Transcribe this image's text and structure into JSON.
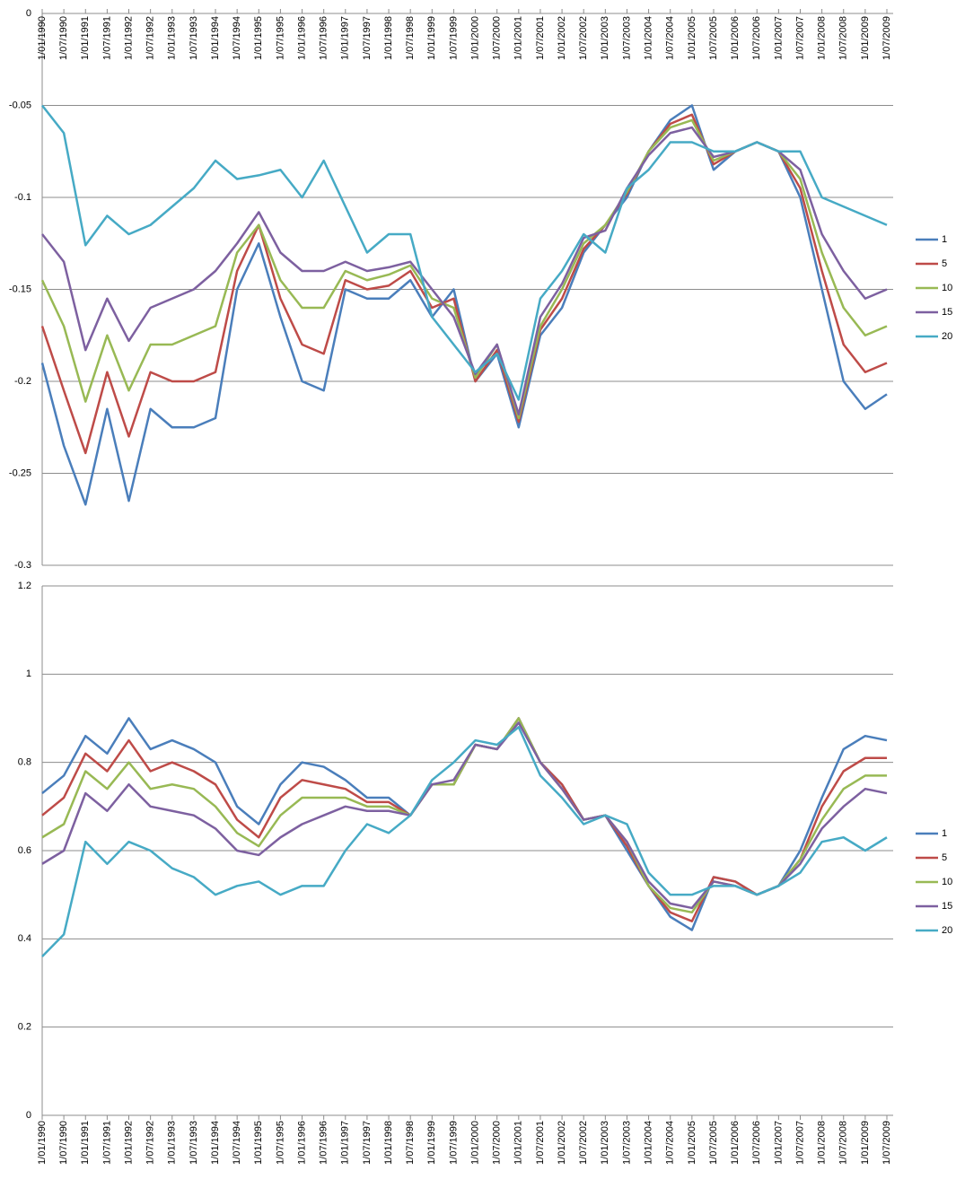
{
  "chart_data": [
    {
      "type": "line",
      "categories": [
        "1/01/1990",
        "1/07/1990",
        "1/01/1991",
        "1/07/1991",
        "1/01/1992",
        "1/07/1992",
        "1/01/1993",
        "1/07/1993",
        "1/01/1994",
        "1/07/1994",
        "1/01/1995",
        "1/07/1995",
        "1/01/1996",
        "1/07/1996",
        "1/01/1997",
        "1/07/1997",
        "1/01/1998",
        "1/07/1998",
        "1/01/1999",
        "1/07/1999",
        "1/01/2000",
        "1/07/2000",
        "1/01/2001",
        "1/07/2001",
        "1/01/2002",
        "1/07/2002",
        "1/01/2003",
        "1/07/2003",
        "1/01/2004",
        "1/07/2004",
        "1/01/2005",
        "1/07/2005",
        "1/01/2006",
        "1/07/2006",
        "1/01/2007",
        "1/07/2007",
        "1/01/2008",
        "1/07/2008",
        "1/01/2009",
        "1/07/2009"
      ],
      "series": [
        {
          "name": "1",
          "color": "#4a7ebb",
          "values": [
            -0.19,
            -0.235,
            -0.267,
            -0.215,
            -0.265,
            -0.215,
            -0.225,
            -0.225,
            -0.22,
            -0.15,
            -0.125,
            -0.165,
            -0.2,
            -0.205,
            -0.15,
            -0.155,
            -0.155,
            -0.145,
            -0.165,
            -0.15,
            -0.2,
            -0.185,
            -0.225,
            -0.175,
            -0.16,
            -0.13,
            -0.115,
            -0.1,
            -0.075,
            -0.058,
            -0.05,
            -0.085,
            -0.075,
            -0.07,
            -0.075,
            -0.1,
            -0.15,
            -0.2,
            -0.215,
            -0.207
          ]
        },
        {
          "name": "5",
          "color": "#be4b48",
          "values": [
            -0.17,
            -0.205,
            -0.239,
            -0.195,
            -0.23,
            -0.195,
            -0.2,
            -0.2,
            -0.195,
            -0.14,
            -0.115,
            -0.155,
            -0.18,
            -0.185,
            -0.145,
            -0.15,
            -0.148,
            -0.14,
            -0.16,
            -0.155,
            -0.2,
            -0.183,
            -0.222,
            -0.172,
            -0.155,
            -0.128,
            -0.115,
            -0.098,
            -0.075,
            -0.06,
            -0.055,
            -0.082,
            -0.075,
            -0.07,
            -0.075,
            -0.095,
            -0.14,
            -0.18,
            -0.195,
            -0.19
          ]
        },
        {
          "name": "10",
          "color": "#98b954",
          "values": [
            -0.145,
            -0.17,
            -0.211,
            -0.175,
            -0.205,
            -0.18,
            -0.18,
            -0.175,
            -0.17,
            -0.13,
            -0.115,
            -0.145,
            -0.16,
            -0.16,
            -0.14,
            -0.145,
            -0.142,
            -0.137,
            -0.155,
            -0.16,
            -0.198,
            -0.18,
            -0.22,
            -0.17,
            -0.15,
            -0.125,
            -0.115,
            -0.097,
            -0.075,
            -0.062,
            -0.058,
            -0.08,
            -0.075,
            -0.07,
            -0.075,
            -0.09,
            -0.13,
            -0.16,
            -0.175,
            -0.17
          ]
        },
        {
          "name": "15",
          "color": "#7d60a0",
          "values": [
            -0.12,
            -0.135,
            -0.183,
            -0.155,
            -0.178,
            -0.16,
            -0.155,
            -0.15,
            -0.14,
            -0.125,
            -0.108,
            -0.13,
            -0.14,
            -0.14,
            -0.135,
            -0.14,
            -0.138,
            -0.135,
            -0.15,
            -0.165,
            -0.196,
            -0.18,
            -0.218,
            -0.165,
            -0.147,
            -0.122,
            -0.118,
            -0.095,
            -0.077,
            -0.065,
            -0.062,
            -0.078,
            -0.075,
            -0.07,
            -0.075,
            -0.085,
            -0.12,
            -0.14,
            -0.155,
            -0.15
          ]
        },
        {
          "name": "20",
          "color": "#46aac5",
          "values": [
            -0.05,
            -0.065,
            -0.126,
            -0.11,
            -0.12,
            -0.115,
            -0.105,
            -0.095,
            -0.08,
            -0.09,
            -0.088,
            -0.085,
            -0.1,
            -0.08,
            -0.105,
            -0.13,
            -0.12,
            -0.12,
            -0.165,
            -0.18,
            -0.195,
            -0.185,
            -0.21,
            -0.155,
            -0.14,
            -0.12,
            -0.13,
            -0.095,
            -0.085,
            -0.07,
            -0.07,
            -0.075,
            -0.075,
            -0.07,
            -0.075,
            -0.075,
            -0.1,
            -0.105,
            -0.11,
            -0.115
          ]
        }
      ],
      "ylim": [
        -0.3,
        0
      ],
      "yticks": [
        0,
        -0.05,
        -0.1,
        -0.15,
        -0.2,
        -0.25,
        -0.3
      ],
      "grid": true
    },
    {
      "type": "line",
      "categories": [
        "1/01/1990",
        "1/07/1990",
        "1/01/1991",
        "1/07/1991",
        "1/01/1992",
        "1/07/1992",
        "1/01/1993",
        "1/07/1993",
        "1/01/1994",
        "1/07/1994",
        "1/01/1995",
        "1/07/1995",
        "1/01/1996",
        "1/07/1996",
        "1/01/1997",
        "1/07/1997",
        "1/01/1998",
        "1/07/1998",
        "1/01/1999",
        "1/07/1999",
        "1/01/2000",
        "1/07/2000",
        "1/01/2001",
        "1/07/2001",
        "1/01/2002",
        "1/07/2002",
        "1/01/2003",
        "1/07/2003",
        "1/01/2004",
        "1/07/2004",
        "1/01/2005",
        "1/07/2005",
        "1/01/2006",
        "1/07/2006",
        "1/01/2007",
        "1/07/2007",
        "1/01/2008",
        "1/07/2008",
        "1/01/2009",
        "1/07/2009"
      ],
      "series": [
        {
          "name": "1",
          "color": "#4a7ebb",
          "values": [
            0.73,
            0.77,
            0.86,
            0.82,
            0.9,
            0.83,
            0.85,
            0.83,
            0.8,
            0.7,
            0.66,
            0.75,
            0.8,
            0.79,
            0.76,
            0.72,
            0.72,
            0.68,
            0.75,
            0.75,
            0.84,
            0.83,
            0.9,
            0.8,
            0.75,
            0.67,
            0.68,
            0.6,
            0.52,
            0.45,
            0.42,
            0.54,
            0.53,
            0.5,
            0.52,
            0.6,
            0.72,
            0.83,
            0.86,
            0.85
          ]
        },
        {
          "name": "5",
          "color": "#be4b48",
          "values": [
            0.68,
            0.72,
            0.82,
            0.78,
            0.85,
            0.78,
            0.8,
            0.78,
            0.75,
            0.67,
            0.63,
            0.72,
            0.76,
            0.75,
            0.74,
            0.71,
            0.71,
            0.68,
            0.75,
            0.75,
            0.84,
            0.83,
            0.9,
            0.8,
            0.75,
            0.67,
            0.68,
            0.61,
            0.52,
            0.46,
            0.44,
            0.54,
            0.53,
            0.5,
            0.52,
            0.58,
            0.7,
            0.78,
            0.81,
            0.81
          ]
        },
        {
          "name": "10",
          "color": "#98b954",
          "values": [
            0.63,
            0.66,
            0.78,
            0.74,
            0.8,
            0.74,
            0.75,
            0.74,
            0.7,
            0.64,
            0.61,
            0.68,
            0.72,
            0.72,
            0.72,
            0.7,
            0.7,
            0.68,
            0.75,
            0.75,
            0.84,
            0.83,
            0.9,
            0.8,
            0.74,
            0.67,
            0.68,
            0.62,
            0.52,
            0.47,
            0.46,
            0.53,
            0.52,
            0.5,
            0.52,
            0.58,
            0.67,
            0.74,
            0.77,
            0.77
          ]
        },
        {
          "name": "15",
          "color": "#7d60a0",
          "values": [
            0.57,
            0.6,
            0.73,
            0.69,
            0.75,
            0.7,
            0.69,
            0.68,
            0.65,
            0.6,
            0.59,
            0.63,
            0.66,
            0.68,
            0.7,
            0.69,
            0.69,
            0.68,
            0.75,
            0.76,
            0.84,
            0.83,
            0.89,
            0.8,
            0.74,
            0.67,
            0.68,
            0.62,
            0.53,
            0.48,
            0.47,
            0.53,
            0.52,
            0.5,
            0.52,
            0.57,
            0.65,
            0.7,
            0.74,
            0.73
          ]
        },
        {
          "name": "20",
          "color": "#46aac5",
          "values": [
            0.36,
            0.41,
            0.62,
            0.57,
            0.62,
            0.6,
            0.56,
            0.54,
            0.5,
            0.52,
            0.53,
            0.5,
            0.52,
            0.52,
            0.6,
            0.66,
            0.64,
            0.68,
            0.76,
            0.8,
            0.85,
            0.84,
            0.88,
            0.77,
            0.72,
            0.66,
            0.68,
            0.66,
            0.55,
            0.5,
            0.5,
            0.52,
            0.52,
            0.5,
            0.52,
            0.55,
            0.62,
            0.63,
            0.6,
            0.63
          ]
        }
      ],
      "ylim": [
        0,
        1.2
      ],
      "yticks": [
        0,
        0.2,
        0.4,
        0.6,
        0.8,
        1,
        1.2
      ],
      "grid": true
    }
  ]
}
